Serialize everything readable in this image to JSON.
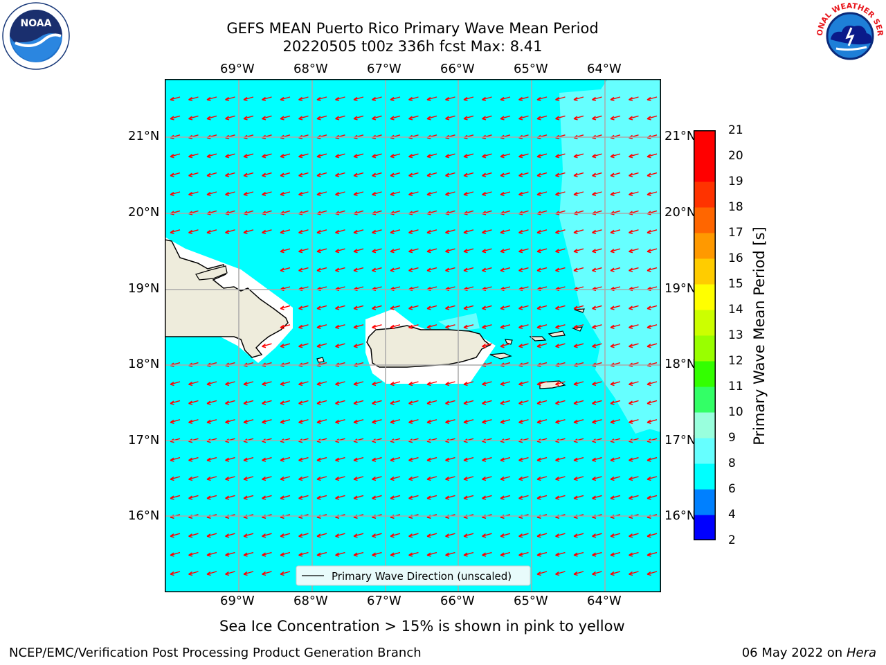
{
  "title_line1": "GEFS MEAN Puerto Rico Primary Wave Mean Period",
  "title_line2": "20220505 t00z 336h fcst   Max: 8.41",
  "map": {
    "lon_labels": [
      "69°W",
      "68°W",
      "67°W",
      "66°W",
      "65°W",
      "64°W"
    ],
    "lat_labels": [
      "21°N",
      "20°N",
      "19°N",
      "18°N",
      "17°N",
      "16°N"
    ],
    "legend_label": "Primary Wave Direction (unscaled)",
    "ocean_color": "#00ffff",
    "land_color": "#eeecdc",
    "arrow_color": "#ff0000",
    "gridline_color": "#aaaaaa"
  },
  "colorbar": {
    "label": "Primary Wave Mean Period [s]",
    "ticks": [
      "2",
      "4",
      "6",
      "8",
      "9",
      "10",
      "11",
      "12",
      "13",
      "14",
      "15",
      "16",
      "17",
      "18",
      "19",
      "20",
      "21"
    ],
    "colors": [
      "#0000ff",
      "#0080ff",
      "#00ffff",
      "#66ffff",
      "#99ffdd",
      "#33ff66",
      "#33ff00",
      "#99ff00",
      "#ccff00",
      "#ffff00",
      "#ffcc00",
      "#ff9900",
      "#ff6600",
      "#ff3300",
      "#ff0000",
      "#ff0000"
    ]
  },
  "sea_ice_note": "Sea Ice Concentration > 15% is shown in pink to yellow",
  "footer_left": "NCEP/EMC/Verification Post Processing Product Generation Branch",
  "footer_date": "06 May 2022 on",
  "footer_host": "Hera",
  "logos": {
    "left": "NOAA",
    "right": "NATIONAL WEATHER SERVICE"
  }
}
